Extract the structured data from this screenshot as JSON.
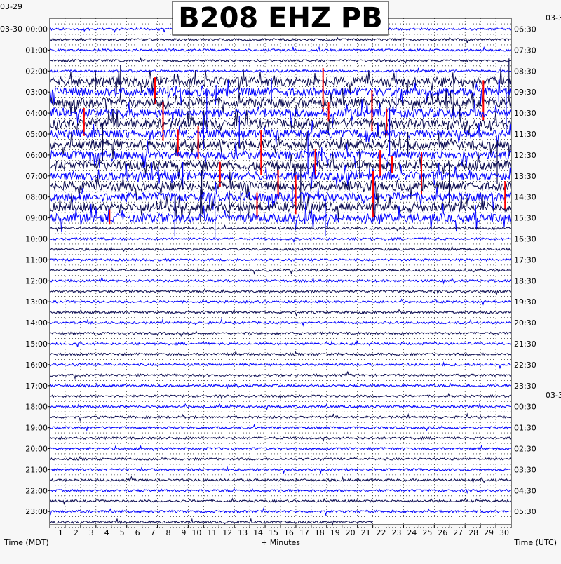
{
  "chart_data": {
    "type": "line",
    "title": "B208 EHZ PB",
    "left_axis_label": "Time (MDT)",
    "right_axis_label": "Time (UTC)",
    "x_axis_label": "+ Minutes",
    "left_dates": [
      "03-29",
      "03-30"
    ],
    "right_dates": [
      "03-3",
      "03-3"
    ],
    "x_ticks": [
      "1",
      "2",
      "3",
      "4",
      "5",
      "6",
      "7",
      "8",
      "9",
      "10",
      "11",
      "12",
      "13",
      "14",
      "15",
      "16",
      "17",
      "18",
      "19",
      "20",
      "21",
      "22",
      "23",
      "24",
      "25",
      "26",
      "27",
      "28",
      "29",
      "30"
    ],
    "xlim": [
      0,
      30
    ],
    "left_hour_labels": [
      "00:00",
      "01:00",
      "02:00",
      "03:00",
      "04:00",
      "05:00",
      "06:00",
      "07:00",
      "08:00",
      "09:00",
      "10:00",
      "11:00",
      "12:00",
      "13:00",
      "14:00",
      "15:00",
      "16:00",
      "17:00",
      "18:00",
      "19:00",
      "20:00",
      "21:00",
      "22:00",
      "23:00"
    ],
    "right_hour_labels": [
      "06:30",
      "07:30",
      "08:30",
      "09:30",
      "10:30",
      "11:30",
      "12:30",
      "13:30",
      "14:30",
      "15:30",
      "16:30",
      "17:30",
      "18:30",
      "19:30",
      "20:30",
      "21:30",
      "22:30",
      "23:30",
      "00:30",
      "01:30",
      "02:30",
      "03:30",
      "04:30",
      "05:30"
    ],
    "traces_per_hour": 2,
    "trace_minutes": 30,
    "last_trace_end_minute": 21,
    "series_colors": [
      "#0000ff",
      "#0a0a50"
    ],
    "clip_color": "#ff0000",
    "activity_high_hours": [
      3,
      4,
      5,
      6,
      7,
      8
    ]
  }
}
